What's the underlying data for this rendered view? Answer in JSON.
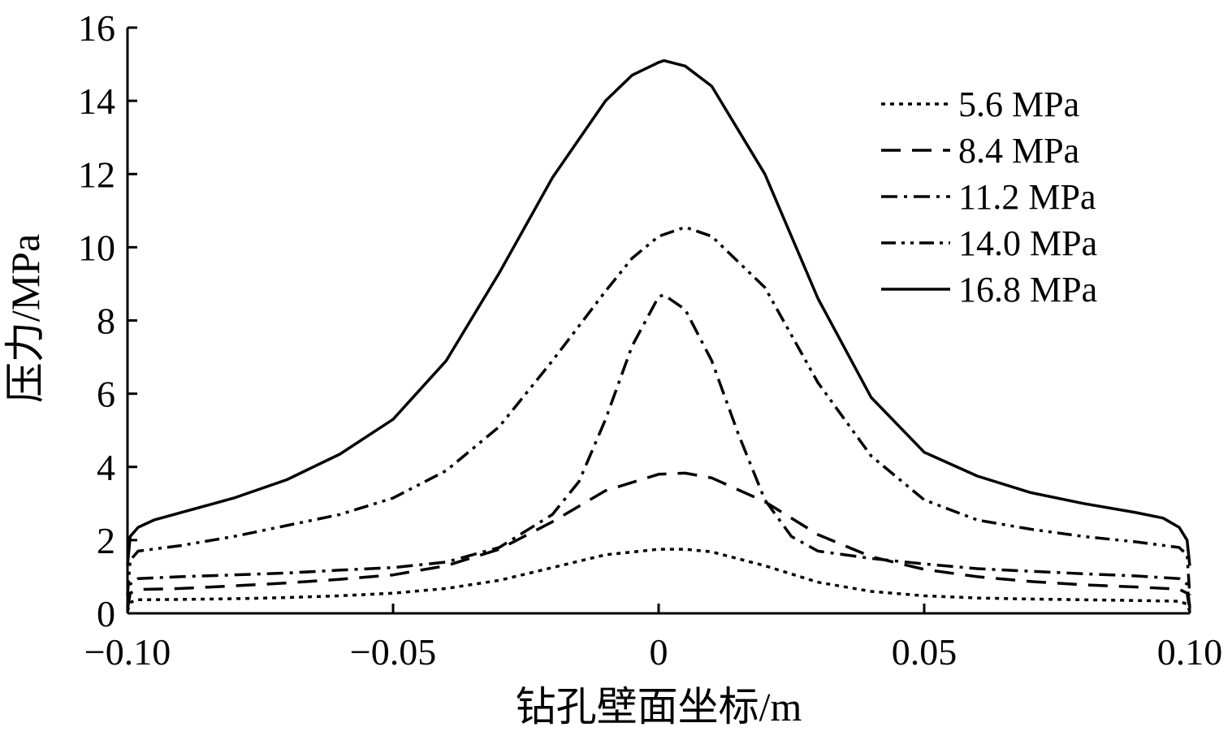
{
  "chart_data": {
    "type": "line",
    "title": "",
    "xlabel": "钻孔壁面坐标/m",
    "ylabel": "压力/MPa",
    "xlim": [
      -0.1,
      0.1
    ],
    "ylim": [
      0,
      16
    ],
    "x_ticks": [
      -0.1,
      -0.05,
      0,
      0.05,
      0.1
    ],
    "x_tick_labels": [
      "−0.10",
      "−0.05",
      "0",
      "0.05",
      "0.10"
    ],
    "y_ticks": [
      0,
      2,
      4,
      6,
      8,
      10,
      12,
      14,
      16
    ],
    "y_tick_labels": [
      "0",
      "2",
      "4",
      "6",
      "8",
      "10",
      "12",
      "14",
      "16"
    ],
    "grid": false,
    "legend_position": "top-right",
    "series": [
      {
        "name": "5.6 MPa",
        "style": "dotted",
        "color": "#000000",
        "points": [
          [
            -0.1,
            0.05
          ],
          [
            -0.0995,
            0.3
          ],
          [
            -0.098,
            0.37
          ],
          [
            -0.09,
            0.38
          ],
          [
            -0.08,
            0.4
          ],
          [
            -0.07,
            0.43
          ],
          [
            -0.06,
            0.48
          ],
          [
            -0.05,
            0.55
          ],
          [
            -0.04,
            0.68
          ],
          [
            -0.03,
            0.9
          ],
          [
            -0.02,
            1.25
          ],
          [
            -0.01,
            1.6
          ],
          [
            0,
            1.75
          ],
          [
            0.005,
            1.75
          ],
          [
            0.01,
            1.68
          ],
          [
            0.02,
            1.3
          ],
          [
            0.03,
            0.85
          ],
          [
            0.04,
            0.6
          ],
          [
            0.05,
            0.48
          ],
          [
            0.06,
            0.42
          ],
          [
            0.07,
            0.39
          ],
          [
            0.08,
            0.37
          ],
          [
            0.09,
            0.35
          ],
          [
            0.098,
            0.33
          ],
          [
            0.0995,
            0.25
          ],
          [
            0.1,
            0.05
          ]
        ]
      },
      {
        "name": "8.4 MPa",
        "style": "dashed",
        "color": "#000000",
        "points": [
          [
            -0.1,
            0.1
          ],
          [
            -0.0995,
            0.55
          ],
          [
            -0.098,
            0.65
          ],
          [
            -0.09,
            0.68
          ],
          [
            -0.08,
            0.75
          ],
          [
            -0.07,
            0.83
          ],
          [
            -0.06,
            0.93
          ],
          [
            -0.05,
            1.05
          ],
          [
            -0.04,
            1.3
          ],
          [
            -0.03,
            1.75
          ],
          [
            -0.02,
            2.5
          ],
          [
            -0.01,
            3.35
          ],
          [
            0,
            3.8
          ],
          [
            0.005,
            3.83
          ],
          [
            0.01,
            3.7
          ],
          [
            0.02,
            3.05
          ],
          [
            0.03,
            2.15
          ],
          [
            0.04,
            1.55
          ],
          [
            0.05,
            1.2
          ],
          [
            0.06,
            1.0
          ],
          [
            0.07,
            0.87
          ],
          [
            0.08,
            0.78
          ],
          [
            0.09,
            0.72
          ],
          [
            0.098,
            0.66
          ],
          [
            0.0995,
            0.55
          ],
          [
            0.1,
            0.1
          ]
        ]
      },
      {
        "name": "11.2 MPa",
        "style": "dashdot",
        "color": "#000000",
        "points": [
          [
            -0.1,
            0.15
          ],
          [
            -0.0995,
            0.8
          ],
          [
            -0.098,
            0.95
          ],
          [
            -0.09,
            1.0
          ],
          [
            -0.08,
            1.05
          ],
          [
            -0.07,
            1.1
          ],
          [
            -0.06,
            1.18
          ],
          [
            -0.05,
            1.25
          ],
          [
            -0.04,
            1.4
          ],
          [
            -0.03,
            1.8
          ],
          [
            -0.02,
            2.7
          ],
          [
            -0.015,
            3.6
          ],
          [
            -0.01,
            5.3
          ],
          [
            -0.005,
            7.3
          ],
          [
            0,
            8.65
          ],
          [
            0.001,
            8.7
          ],
          [
            0.005,
            8.3
          ],
          [
            0.01,
            6.9
          ],
          [
            0.015,
            4.9
          ],
          [
            0.02,
            3.1
          ],
          [
            0.025,
            2.1
          ],
          [
            0.03,
            1.7
          ],
          [
            0.04,
            1.5
          ],
          [
            0.05,
            1.35
          ],
          [
            0.06,
            1.22
          ],
          [
            0.07,
            1.15
          ],
          [
            0.08,
            1.08
          ],
          [
            0.09,
            1.02
          ],
          [
            0.098,
            0.95
          ],
          [
            0.0995,
            0.8
          ],
          [
            0.1,
            0.15
          ]
        ]
      },
      {
        "name": "14.0 MPa",
        "style": "dashdotdot",
        "color": "#000000",
        "points": [
          [
            -0.1,
            0.5
          ],
          [
            -0.0995,
            1.45
          ],
          [
            -0.098,
            1.7
          ],
          [
            -0.09,
            1.85
          ],
          [
            -0.08,
            2.1
          ],
          [
            -0.07,
            2.4
          ],
          [
            -0.06,
            2.7
          ],
          [
            -0.05,
            3.15
          ],
          [
            -0.04,
            3.9
          ],
          [
            -0.03,
            5.1
          ],
          [
            -0.02,
            6.9
          ],
          [
            -0.01,
            8.8
          ],
          [
            -0.005,
            9.7
          ],
          [
            0,
            10.3
          ],
          [
            0.005,
            10.55
          ],
          [
            0.01,
            10.3
          ],
          [
            0.02,
            8.9
          ],
          [
            0.03,
            6.3
          ],
          [
            0.04,
            4.3
          ],
          [
            0.05,
            3.1
          ],
          [
            0.06,
            2.55
          ],
          [
            0.07,
            2.3
          ],
          [
            0.08,
            2.1
          ],
          [
            0.09,
            1.95
          ],
          [
            0.098,
            1.8
          ],
          [
            0.0995,
            1.6
          ],
          [
            0.1,
            0.5
          ]
        ]
      },
      {
        "name": "16.8 MPa",
        "style": "solid",
        "color": "#000000",
        "points": [
          [
            -0.1,
            1.3
          ],
          [
            -0.0995,
            2.1
          ],
          [
            -0.098,
            2.35
          ],
          [
            -0.095,
            2.55
          ],
          [
            -0.09,
            2.75
          ],
          [
            -0.08,
            3.15
          ],
          [
            -0.07,
            3.65
          ],
          [
            -0.06,
            4.35
          ],
          [
            -0.05,
            5.3
          ],
          [
            -0.04,
            6.9
          ],
          [
            -0.03,
            9.3
          ],
          [
            -0.02,
            11.9
          ],
          [
            -0.01,
            14.0
          ],
          [
            -0.005,
            14.7
          ],
          [
            0,
            15.05
          ],
          [
            0.001,
            15.1
          ],
          [
            0.005,
            14.95
          ],
          [
            0.01,
            14.4
          ],
          [
            0.02,
            12.0
          ],
          [
            0.03,
            8.6
          ],
          [
            0.04,
            5.9
          ],
          [
            0.05,
            4.4
          ],
          [
            0.06,
            3.75
          ],
          [
            0.07,
            3.3
          ],
          [
            0.08,
            3.0
          ],
          [
            0.09,
            2.75
          ],
          [
            0.095,
            2.6
          ],
          [
            0.098,
            2.35
          ],
          [
            0.0995,
            2.0
          ],
          [
            0.1,
            1.3
          ]
        ]
      }
    ]
  }
}
